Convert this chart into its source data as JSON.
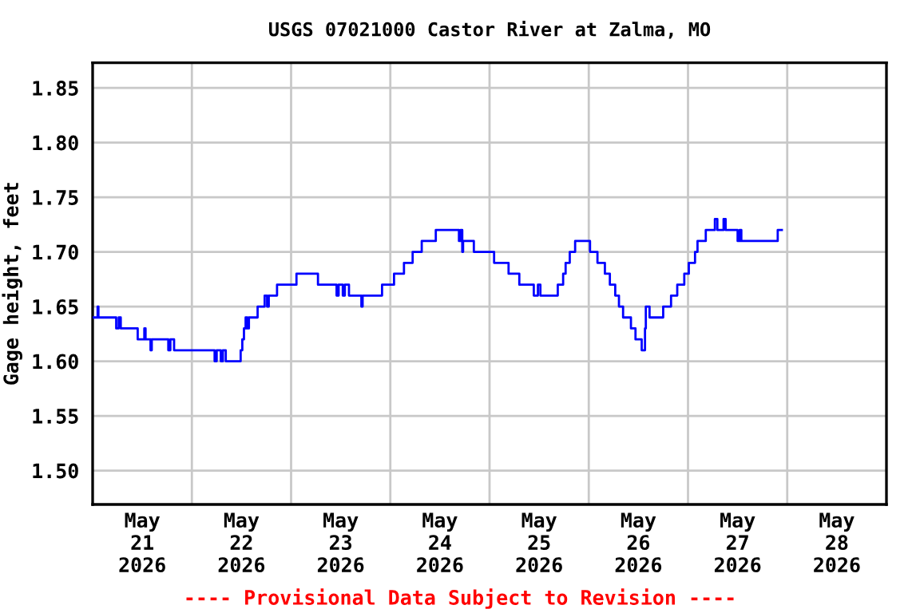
{
  "chart_data": {
    "type": "step",
    "title": "USGS 07021000 Castor River at Zalma, MO",
    "ylabel": "Gage height, feet",
    "annotations": [
      "---- Provisional Data Subject to Revision ----"
    ],
    "x": [
      "2026-05-21T00:00",
      "2026-05-21T01:12",
      "2026-05-21T01:24",
      "2026-05-21T05:42",
      "2026-05-21T06:18",
      "2026-05-21T06:48",
      "2026-05-21T10:54",
      "2026-05-21T12:30",
      "2026-05-21T12:48",
      "2026-05-21T14:00",
      "2026-05-21T14:18",
      "2026-05-21T18:18",
      "2026-05-21T18:48",
      "2026-05-21T19:42",
      "2026-05-22T05:30",
      "2026-05-22T06:00",
      "2026-05-22T07:00",
      "2026-05-22T07:30",
      "2026-05-22T08:12",
      "2026-05-22T11:48",
      "2026-05-22T12:12",
      "2026-05-22T12:36",
      "2026-05-22T13:00",
      "2026-05-22T13:24",
      "2026-05-22T13:48",
      "2026-05-22T15:54",
      "2026-05-22T17:36",
      "2026-05-22T18:12",
      "2026-05-22T18:36",
      "2026-05-22T20:36",
      "2026-05-23T01:18",
      "2026-05-23T06:30",
      "2026-05-23T11:00",
      "2026-05-23T11:30",
      "2026-05-23T12:30",
      "2026-05-23T13:00",
      "2026-05-23T14:00",
      "2026-05-23T17:00",
      "2026-05-23T17:18",
      "2026-05-23T22:00",
      "2026-05-24T00:54",
      "2026-05-24T03:18",
      "2026-05-24T05:24",
      "2026-05-24T07:36",
      "2026-05-24T11:00",
      "2026-05-24T16:36",
      "2026-05-24T17:00",
      "2026-05-24T17:24",
      "2026-05-24T17:36",
      "2026-05-24T20:12",
      "2026-05-25T01:06",
      "2026-05-25T04:36",
      "2026-05-25T07:12",
      "2026-05-25T10:42",
      "2026-05-25T11:42",
      "2026-05-25T12:18",
      "2026-05-25T16:30",
      "2026-05-25T17:48",
      "2026-05-25T18:24",
      "2026-05-25T19:24",
      "2026-05-25T20:42",
      "2026-05-26T00:18",
      "2026-05-26T02:06",
      "2026-05-26T03:54",
      "2026-05-26T05:06",
      "2026-05-26T06:24",
      "2026-05-26T07:18",
      "2026-05-26T08:18",
      "2026-05-26T10:12",
      "2026-05-26T11:18",
      "2026-05-26T12:48",
      "2026-05-26T13:36",
      "2026-05-26T13:48",
      "2026-05-26T14:42",
      "2026-05-26T18:00",
      "2026-05-26T19:54",
      "2026-05-26T21:24",
      "2026-05-26T23:06",
      "2026-05-27T00:12",
      "2026-05-27T01:42",
      "2026-05-27T02:18",
      "2026-05-27T04:18",
      "2026-05-27T06:30",
      "2026-05-27T07:06",
      "2026-05-27T08:36",
      "2026-05-27T09:06",
      "2026-05-27T12:00",
      "2026-05-27T12:30",
      "2026-05-27T12:54",
      "2026-05-27T21:42",
      "2026-05-27T22:42"
    ],
    "series": [
      {
        "color": "#0000ff",
        "values": [
          1.64,
          1.65,
          1.64,
          1.63,
          1.64,
          1.63,
          1.62,
          1.63,
          1.62,
          1.61,
          1.62,
          1.61,
          1.62,
          1.61,
          1.6,
          1.61,
          1.6,
          1.61,
          1.6,
          1.61,
          1.62,
          1.63,
          1.64,
          1.63,
          1.64,
          1.65,
          1.66,
          1.65,
          1.66,
          1.67,
          1.68,
          1.67,
          1.66,
          1.67,
          1.66,
          1.67,
          1.66,
          1.65,
          1.66,
          1.67,
          1.68,
          1.69,
          1.7,
          1.71,
          1.72,
          1.71,
          1.72,
          1.7,
          1.71,
          1.7,
          1.69,
          1.68,
          1.67,
          1.66,
          1.67,
          1.66,
          1.67,
          1.68,
          1.69,
          1.7,
          1.71,
          1.7,
          1.69,
          1.68,
          1.67,
          1.66,
          1.65,
          1.64,
          1.63,
          1.62,
          1.61,
          1.63,
          1.65,
          1.64,
          1.65,
          1.66,
          1.67,
          1.68,
          1.69,
          1.7,
          1.71,
          1.72,
          1.73,
          1.72,
          1.73,
          1.72,
          1.71,
          1.72,
          1.71,
          1.72,
          1.72
        ]
      }
    ],
    "xlim": [
      "2026-05-21T00:00",
      "2026-05-29T00:00"
    ],
    "xticks": [
      {
        "value": "2026-05-21T12:00",
        "label": "May\n21\n2026"
      },
      {
        "value": "2026-05-22T00:00",
        "label": null
      },
      {
        "value": "2026-05-22T12:00",
        "label": "May\n22\n2026"
      },
      {
        "value": "2026-05-23T00:00",
        "label": null
      },
      {
        "value": "2026-05-23T12:00",
        "label": "May\n23\n2026"
      },
      {
        "value": "2026-05-24T00:00",
        "label": null
      },
      {
        "value": "2026-05-24T12:00",
        "label": "May\n24\n2026"
      },
      {
        "value": "2026-05-25T00:00",
        "label": null
      },
      {
        "value": "2026-05-25T12:00",
        "label": "May\n25\n2026"
      },
      {
        "value": "2026-05-26T00:00",
        "label": null
      },
      {
        "value": "2026-05-26T12:00",
        "label": "May\n26\n2026"
      },
      {
        "value": "2026-05-27T00:00",
        "label": null
      },
      {
        "value": "2026-05-27T12:00",
        "label": "May\n27\n2026"
      },
      {
        "value": "2026-05-28T00:00",
        "label": null
      },
      {
        "value": "2026-05-28T12:00",
        "label": "May\n28\n2026"
      }
    ],
    "ylim": [
      1.469,
      1.873
    ],
    "yticks": [
      {
        "value": 1.5,
        "label": "1.50"
      },
      {
        "value": 1.55,
        "label": "1.55"
      },
      {
        "value": 1.6,
        "label": "1.60"
      },
      {
        "value": 1.65,
        "label": "1.65"
      },
      {
        "value": 1.7,
        "label": "1.70"
      },
      {
        "value": 1.75,
        "label": "1.75"
      },
      {
        "value": 1.8,
        "label": "1.80"
      },
      {
        "value": 1.85,
        "label": "1.85"
      }
    ],
    "grid": true,
    "legend": false
  }
}
